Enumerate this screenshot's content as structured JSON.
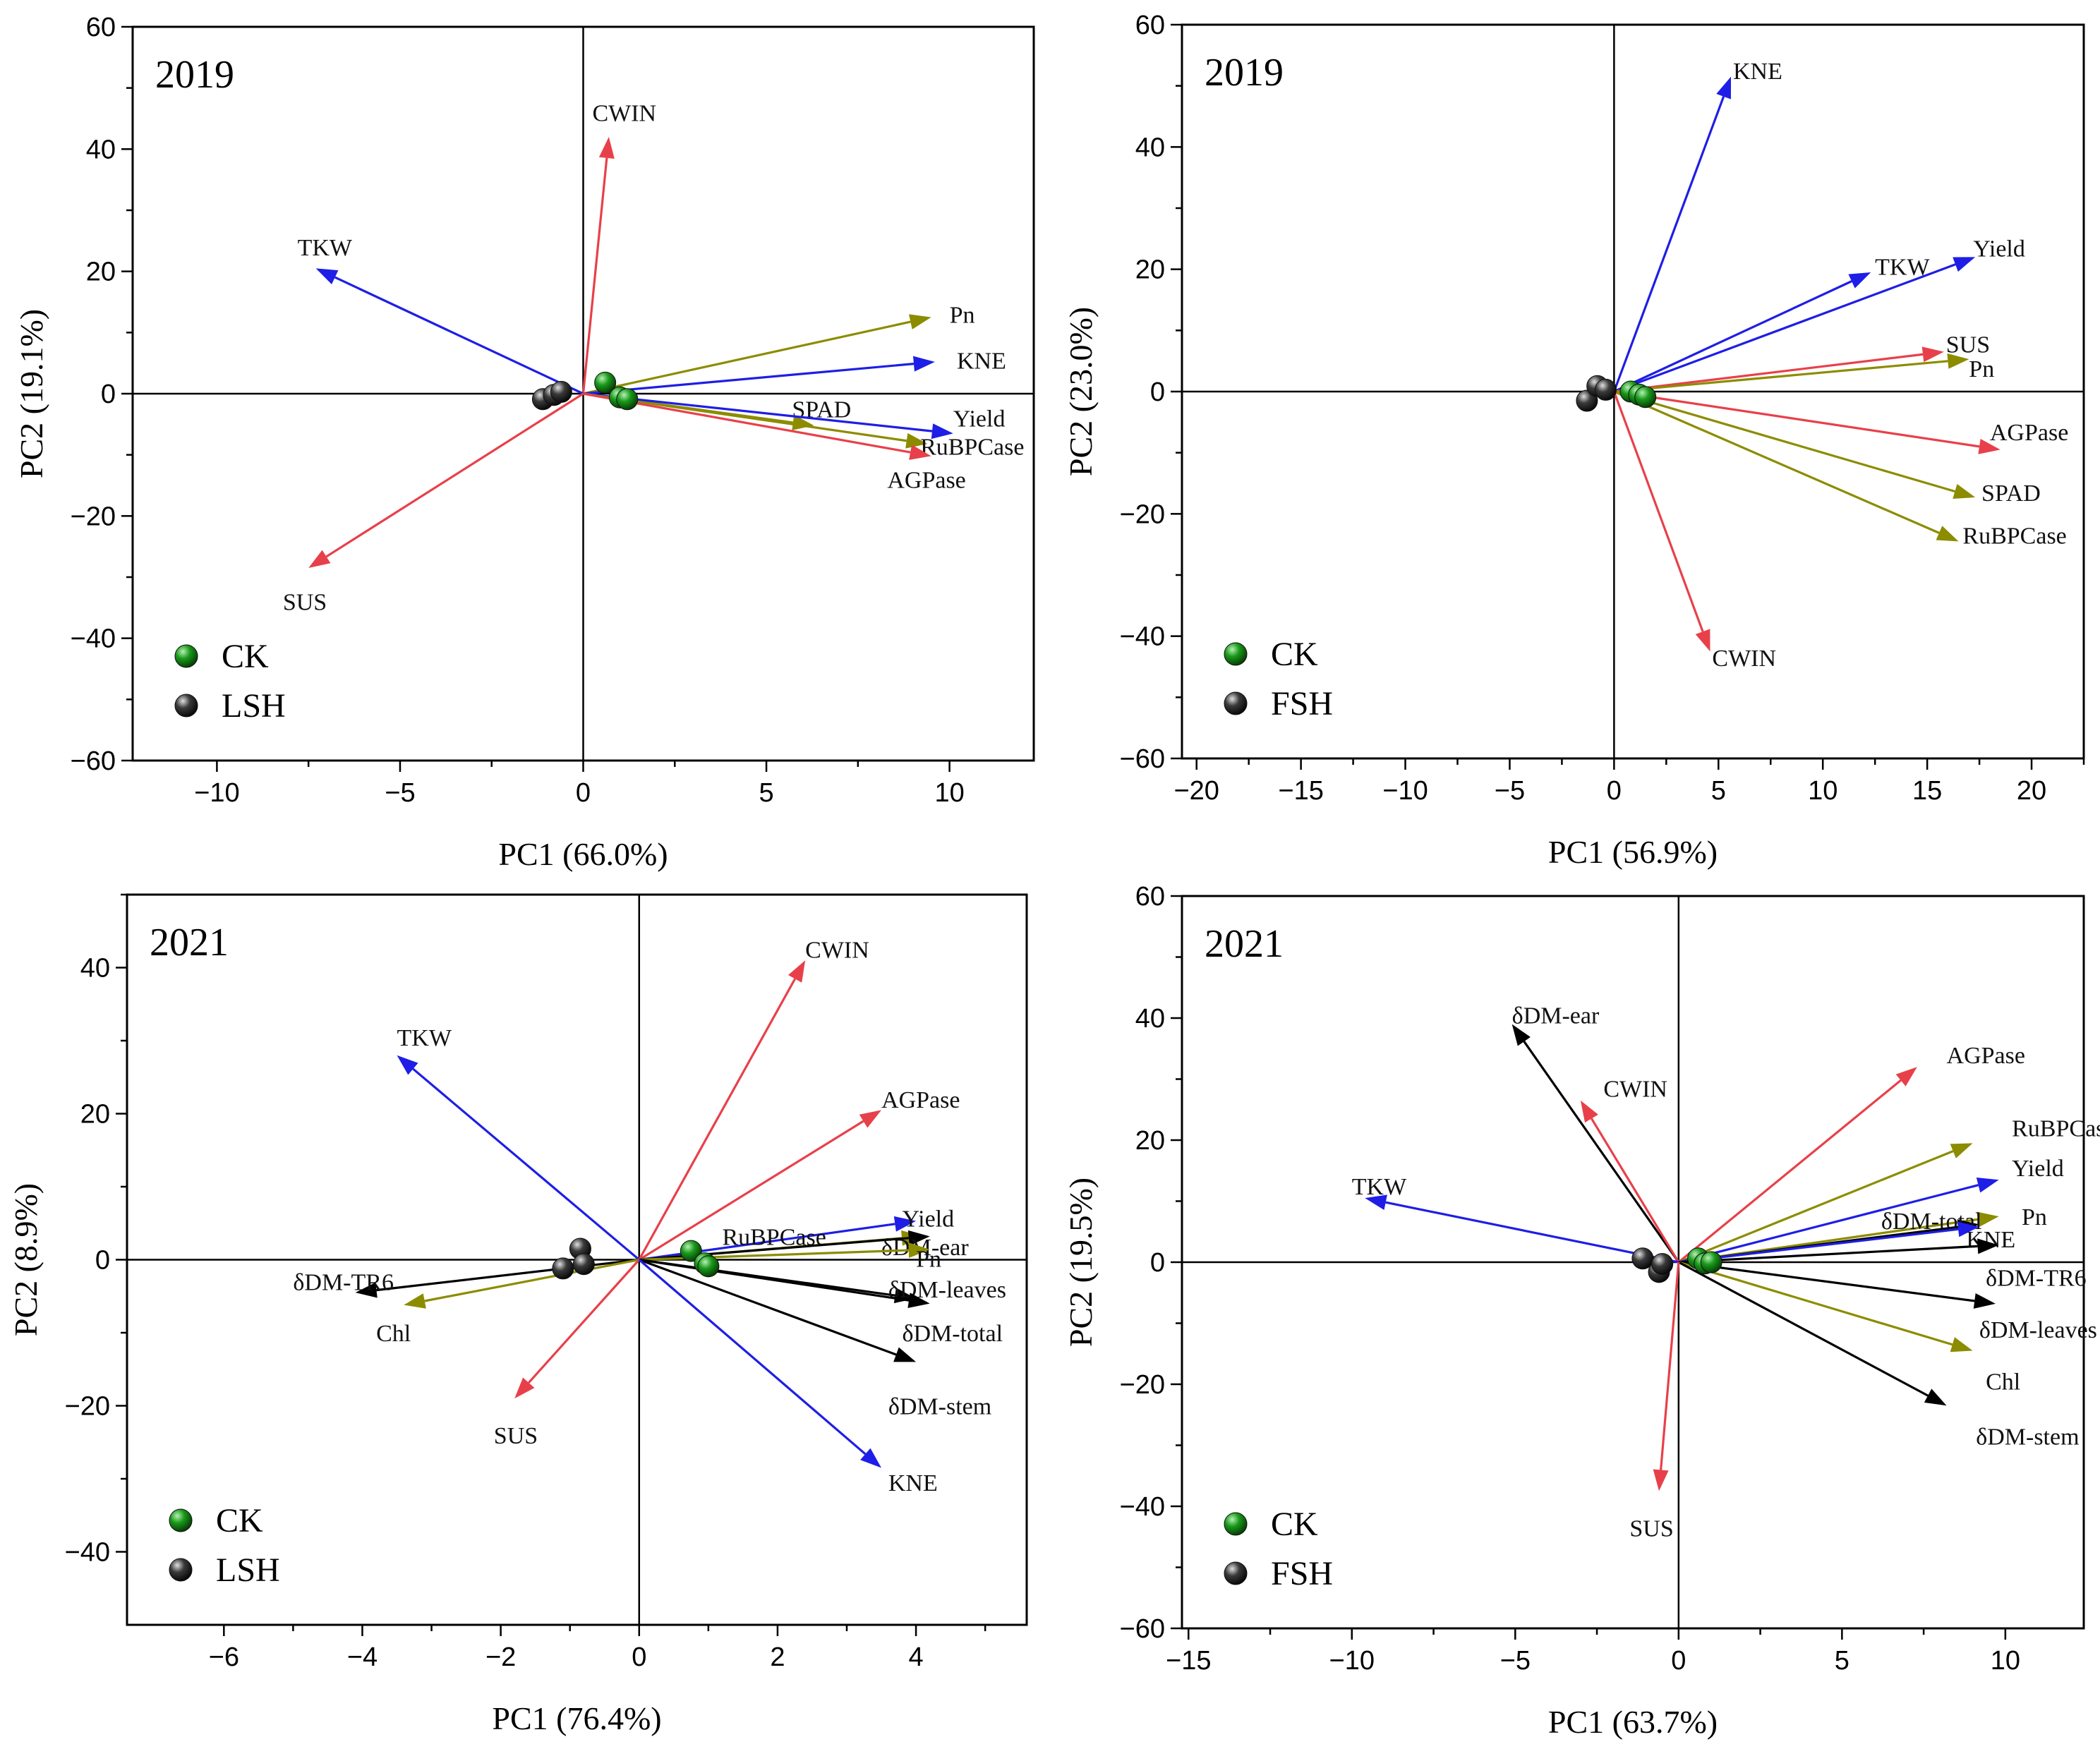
{
  "colors": {
    "red": "#e8404a",
    "blue": "#1e1ee6",
    "olive": "#8c8c00",
    "black": "#000000",
    "ck": "#1a9a1a",
    "treat": "#3a3a3a"
  },
  "chart_data": [
    {
      "type": "scatter",
      "title": "2019",
      "xlabel": "PC1 (66.0%)",
      "ylabel": "PC2 (19.1%)",
      "xlim": [
        -12.3,
        12.3
      ],
      "ylim": [
        -60,
        60
      ],
      "xticks": [
        -10,
        -5,
        0,
        5,
        10
      ],
      "xtick_labels": [
        "−10",
        "−5",
        "0",
        "5",
        "10"
      ],
      "yticks": [
        -60,
        -40,
        -20,
        0,
        20,
        40,
        60
      ],
      "ytick_labels": [
        "−60",
        "−40",
        "−20",
        "0",
        "20",
        "40",
        "60"
      ],
      "legend": [
        {
          "label": "CK",
          "color_key": "ck"
        },
        {
          "label": "LSH",
          "color_key": "treat"
        }
      ],
      "vectors": [
        {
          "name": "CWIN",
          "x": 0.7,
          "y": 42,
          "color_key": "red",
          "lx": 0.25,
          "ly": 46
        },
        {
          "name": "TKW",
          "x": -7.3,
          "y": 20.5,
          "color_key": "blue",
          "lx": -7.8,
          "ly": 24
        },
        {
          "name": "Pn",
          "x": 9.5,
          "y": 12.5,
          "color_key": "olive",
          "lx": 10.0,
          "ly": 13
        },
        {
          "name": "KNE",
          "x": 9.6,
          "y": 5.2,
          "color_key": "blue",
          "lx": 10.2,
          "ly": 5.5
        },
        {
          "name": "SPAD",
          "x": 6.3,
          "y": -5.2,
          "color_key": "olive",
          "lx": 5.7,
          "ly": -2.5
        },
        {
          "name": "Yield",
          "x": 10.1,
          "y": -6.5,
          "color_key": "blue",
          "lx": 10.1,
          "ly": -4.0
        },
        {
          "name": "RuBPCase",
          "x": 9.4,
          "y": -8.2,
          "color_key": "olive",
          "lx": 9.2,
          "ly": -8.6
        },
        {
          "name": "AGPase",
          "x": 9.5,
          "y": -10.2,
          "color_key": "red",
          "lx": 8.3,
          "ly": -14.0
        },
        {
          "name": "SUS",
          "x": -7.5,
          "y": -28.5,
          "color_key": "red",
          "lx": -8.2,
          "ly": -34.0
        }
      ],
      "points": [
        {
          "group": "CK",
          "x": 0.6,
          "y": 1.8
        },
        {
          "group": "CK",
          "x": 1.0,
          "y": -0.6
        },
        {
          "group": "CK",
          "x": 1.2,
          "y": -0.9
        },
        {
          "group": "LSH",
          "x": -1.1,
          "y": -0.9
        },
        {
          "group": "LSH",
          "x": -0.8,
          "y": -0.2
        },
        {
          "group": "LSH",
          "x": -0.6,
          "y": 0.3
        }
      ]
    },
    {
      "type": "scatter",
      "title": "2019",
      "xlabel": "PC1 (56.9%)",
      "ylabel": "PC2 (23.0%)",
      "xlim": [
        -20.7,
        22.5
      ],
      "ylim": [
        -60,
        60
      ],
      "xticks": [
        -20,
        -15,
        -10,
        -5,
        0,
        5,
        10,
        15,
        20
      ],
      "xtick_labels": [
        "−20",
        "−15",
        "−10",
        "−5",
        "0",
        "5",
        "10",
        "15",
        "20"
      ],
      "yticks": [
        -60,
        -40,
        -20,
        0,
        20,
        40,
        60
      ],
      "ytick_labels": [
        "−60",
        "−40",
        "−20",
        "0",
        "20",
        "40",
        "60"
      ],
      "legend": [
        {
          "label": "CK",
          "color_key": "ck"
        },
        {
          "label": "FSH",
          "color_key": "treat"
        }
      ],
      "vectors": [
        {
          "name": "KNE",
          "x": 5.6,
          "y": 51.5,
          "color_key": "blue",
          "lx": 5.7,
          "ly": 52.5
        },
        {
          "name": "TKW",
          "x": 12.3,
          "y": 19.5,
          "color_key": "blue",
          "lx": 12.5,
          "ly": 20.5
        },
        {
          "name": "Yield",
          "x": 17.3,
          "y": 22,
          "color_key": "blue",
          "lx": 17.2,
          "ly": 23.5
        },
        {
          "name": "SUS",
          "x": 15.8,
          "y": 6.5,
          "color_key": "red",
          "lx": 15.9,
          "ly": 7.8
        },
        {
          "name": "Pn",
          "x": 17.0,
          "y": 5.3,
          "color_key": "olive",
          "lx": 17.0,
          "ly": 3.8
        },
        {
          "name": "AGPase",
          "x": 18.5,
          "y": -9.5,
          "color_key": "red",
          "lx": 18.0,
          "ly": -6.6
        },
        {
          "name": "SPAD",
          "x": 17.3,
          "y": -17.3,
          "color_key": "olive",
          "lx": 17.6,
          "ly": -16.5
        },
        {
          "name": "RuBPCase",
          "x": 16.5,
          "y": -24.5,
          "color_key": "olive",
          "lx": 16.7,
          "ly": -23.5
        },
        {
          "name": "CWIN",
          "x": 4.6,
          "y": -42.5,
          "color_key": "red",
          "lx": 4.7,
          "ly": -43.5
        }
      ],
      "points": [
        {
          "group": "CK",
          "x": 0.8,
          "y": 0.0
        },
        {
          "group": "CK",
          "x": 1.2,
          "y": -0.5
        },
        {
          "group": "CK",
          "x": 1.5,
          "y": -0.9
        },
        {
          "group": "FSH",
          "x": -1.3,
          "y": -1.5
        },
        {
          "group": "FSH",
          "x": -0.8,
          "y": 0.9
        },
        {
          "group": "FSH",
          "x": -0.4,
          "y": 0.3
        }
      ]
    },
    {
      "type": "scatter",
      "title": "2021",
      "xlabel": "PC1 (76.4%)",
      "ylabel": "PC2 (8.9%)",
      "xlim": [
        -7.4,
        5.6
      ],
      "ylim": [
        -50,
        50
      ],
      "xticks": [
        -6,
        -4,
        -2,
        0,
        2,
        4
      ],
      "xtick_labels": [
        "−6",
        "−4",
        "−2",
        "0",
        "2",
        "4"
      ],
      "yticks": [
        -40,
        -20,
        0,
        20,
        40
      ],
      "ytick_labels": [
        "−40",
        "−20",
        "0",
        "20",
        "40"
      ],
      "legend": [
        {
          "label": "CK",
          "color_key": "ck"
        },
        {
          "label": "LSH",
          "color_key": "treat"
        }
      ],
      "vectors": [
        {
          "name": "CWIN",
          "x": 2.4,
          "y": 41,
          "color_key": "red",
          "lx": 2.4,
          "ly": 42.5
        },
        {
          "name": "TKW",
          "x": -3.5,
          "y": 28,
          "color_key": "blue",
          "lx": -3.5,
          "ly": 30.5
        },
        {
          "name": "AGPase",
          "x": 3.5,
          "y": 20.5,
          "color_key": "red",
          "lx": 3.5,
          "ly": 22
        },
        {
          "name": "Yield",
          "x": 4.0,
          "y": 5.3,
          "color_key": "blue",
          "lx": 3.8,
          "ly": 5.7
        },
        {
          "name": "RuBPCase",
          "x": 4.1,
          "y": 3.2,
          "color_key": "olive",
          "lx": 1.2,
          "ly": 3.2
        },
        {
          "name": "δDM-ear",
          "x": 4.2,
          "y": 3.2,
          "color_key": "black",
          "lx": 3.5,
          "ly": 1.8
        },
        {
          "name": "Pn",
          "x": 4.2,
          "y": 1.4,
          "color_key": "olive",
          "lx": 4.0,
          "ly": 0.2
        },
        {
          "name": "δDM-leaves",
          "x": 4.0,
          "y": -5.3,
          "color_key": "black",
          "lx": 3.6,
          "ly": -4.0
        },
        {
          "name": "δDM-total",
          "x": 4.2,
          "y": -6.0,
          "color_key": "black",
          "lx": 3.8,
          "ly": -10.0
        },
        {
          "name": "δDM-stem",
          "x": 4.0,
          "y": -14.0,
          "color_key": "black",
          "lx": 3.6,
          "ly": -20.0
        },
        {
          "name": "δDM-TR6",
          "x": -4.1,
          "y": -4.5,
          "color_key": "black",
          "lx": -5.0,
          "ly": -3.0
        },
        {
          "name": "Chl",
          "x": -3.4,
          "y": -6.2,
          "color_key": "olive",
          "lx": -3.8,
          "ly": -10.0
        },
        {
          "name": "SUS",
          "x": -1.8,
          "y": -19.0,
          "color_key": "red",
          "lx": -2.1,
          "ly": -24.0
        },
        {
          "name": "KNE",
          "x": 3.5,
          "y": -28.5,
          "color_key": "blue",
          "lx": 3.6,
          "ly": -30.5
        }
      ],
      "points": [
        {
          "group": "CK",
          "x": 0.75,
          "y": 1.2
        },
        {
          "group": "CK",
          "x": 0.95,
          "y": -0.5
        },
        {
          "group": "CK",
          "x": 1.0,
          "y": -0.9
        },
        {
          "group": "LSH",
          "x": -1.1,
          "y": -1.2
        },
        {
          "group": "LSH",
          "x": -0.85,
          "y": 1.5
        },
        {
          "group": "LSH",
          "x": -0.8,
          "y": -0.6
        }
      ]
    },
    {
      "type": "scatter",
      "title": "2021",
      "xlabel": "PC1 (63.7%)",
      "ylabel": "PC2 (19.5%)",
      "xlim": [
        -15.2,
        12.4
      ],
      "ylim": [
        -60,
        60
      ],
      "xticks": [
        -15,
        -10,
        -5,
        0,
        5,
        10
      ],
      "xtick_labels": [
        "−15",
        "−10",
        "−5",
        "0",
        "5",
        "10"
      ],
      "yticks": [
        -60,
        -40,
        -20,
        0,
        20,
        40,
        60
      ],
      "ytick_labels": [
        "−60",
        "−40",
        "−20",
        "0",
        "20",
        "40",
        "60"
      ],
      "legend": [
        {
          "label": "CK",
          "color_key": "ck"
        },
        {
          "label": "FSH",
          "color_key": "treat"
        }
      ],
      "vectors": [
        {
          "name": "δDM-ear",
          "x": -5.1,
          "y": 39,
          "color_key": "black",
          "lx": -5.1,
          "ly": 40.5
        },
        {
          "name": "CWIN",
          "x": -3.0,
          "y": 26.5,
          "color_key": "red",
          "lx": -2.3,
          "ly": 28.5
        },
        {
          "name": "AGPase",
          "x": 7.3,
          "y": 32,
          "color_key": "red",
          "lx": 8.2,
          "ly": 34
        },
        {
          "name": "RuBPCase",
          "x": 9.0,
          "y": 19.5,
          "color_key": "olive",
          "lx": 10.2,
          "ly": 22
        },
        {
          "name": "Yield",
          "x": 9.8,
          "y": 13.5,
          "color_key": "blue",
          "lx": 10.2,
          "ly": 15.5
        },
        {
          "name": "Pn",
          "x": 9.8,
          "y": 7.5,
          "color_key": "olive",
          "lx": 10.5,
          "ly": 7.5
        },
        {
          "name": "δDM-total",
          "x": 9.2,
          "y": 6.2,
          "color_key": "black",
          "lx": 6.2,
          "ly": 6.8
        },
        {
          "name": "KNE",
          "x": 9.2,
          "y": 5.8,
          "color_key": "blue",
          "lx": 8.8,
          "ly": 3.8
        },
        {
          "name": "δDM-TR6",
          "x": 9.8,
          "y": 2.8,
          "color_key": "black",
          "lx": 9.4,
          "ly": -2.5
        },
        {
          "name": "δDM-leaves",
          "x": 9.7,
          "y": -6.8,
          "color_key": "black",
          "lx": 9.2,
          "ly": -11.0
        },
        {
          "name": "Chl",
          "x": 9.0,
          "y": -14.5,
          "color_key": "olive",
          "lx": 9.4,
          "ly": -19.5
        },
        {
          "name": "δDM-stem",
          "x": 8.2,
          "y": -23.5,
          "color_key": "black",
          "lx": 9.1,
          "ly": -28.5
        },
        {
          "name": "TKW",
          "x": -9.6,
          "y": 10.5,
          "color_key": "blue",
          "lx": -10.0,
          "ly": 12.5
        },
        {
          "name": "SUS",
          "x": -0.6,
          "y": -37.5,
          "color_key": "red",
          "lx": -1.5,
          "ly": -43.5
        }
      ],
      "points": [
        {
          "group": "CK",
          "x": 0.6,
          "y": 0.6
        },
        {
          "group": "CK",
          "x": 0.8,
          "y": -0.2
        },
        {
          "group": "CK",
          "x": 1.0,
          "y": 0.0
        },
        {
          "group": "FSH",
          "x": -1.1,
          "y": 0.6
        },
        {
          "group": "FSH",
          "x": -0.6,
          "y": -1.6
        },
        {
          "group": "FSH",
          "x": -0.5,
          "y": -0.3
        }
      ]
    }
  ]
}
